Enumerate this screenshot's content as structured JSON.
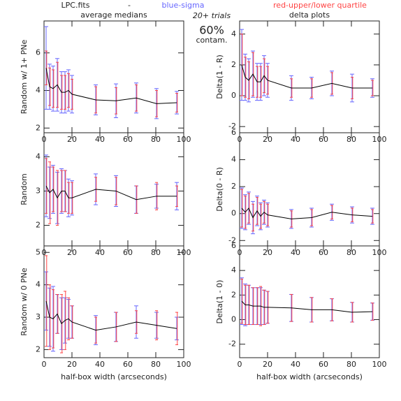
{
  "header": {
    "file": "LPC.fits",
    "dash": "-",
    "blue": "blue-sigma",
    "red": "red-upper/lower quartile",
    "trials": "20+ trials",
    "contam_value": "60%",
    "contam": "contam.",
    "blue_color": "#6666ff",
    "red_color": "#ff4444"
  },
  "chart_data": [
    {
      "type": "line",
      "title": "average medians",
      "ylabel": "Random w/ 1+ PNe",
      "xlim": [
        0,
        100
      ],
      "xticks": [
        0,
        20,
        40,
        60,
        80,
        100
      ],
      "ylim": [
        1.75,
        7.7
      ],
      "yticks": [
        2,
        4,
        6
      ],
      "x": [
        1.5,
        4,
        6.5,
        9.5,
        12.5,
        15,
        17.5,
        20,
        37,
        51.5,
        66,
        80.5,
        95
      ],
      "values": [
        5.2,
        4.2,
        4.1,
        4.3,
        3.9,
        3.9,
        4.0,
        3.8,
        3.5,
        3.45,
        3.6,
        3.3,
        3.35
      ],
      "sigma": [
        2.2,
        1.2,
        1.2,
        1.4,
        1.1,
        1.1,
        1.1,
        1.0,
        0.8,
        0.9,
        0.8,
        0.8,
        0.6
      ],
      "quartile": [
        0.9,
        1.0,
        1.0,
        1.2,
        0.9,
        0.9,
        0.9,
        0.8,
        0.7,
        0.7,
        0.7,
        0.7,
        0.5
      ],
      "line_color": "#000000",
      "sigma_color": "#6666ff",
      "quartile_color": "#ff4444"
    },
    {
      "type": "line",
      "title": "delta plots",
      "ylabel": "Delta(1 - R)",
      "xlim": [
        0,
        100
      ],
      "xticks": [
        0,
        20,
        40,
        60,
        80,
        100
      ],
      "ylim": [
        -2.4,
        4.85
      ],
      "yticks": [
        -2,
        0,
        2,
        4
      ],
      "x": [
        1.5,
        4,
        6.5,
        9.5,
        12.5,
        15,
        17.5,
        20,
        37,
        51.5,
        66,
        80.5,
        95
      ],
      "values": [
        2.0,
        1.2,
        1.0,
        1.4,
        0.9,
        0.9,
        1.3,
        1.0,
        0.5,
        0.5,
        0.8,
        0.5,
        0.5
      ],
      "sigma": [
        2.3,
        1.5,
        1.4,
        1.5,
        1.2,
        1.2,
        1.3,
        1.1,
        0.8,
        0.7,
        0.8,
        0.9,
        0.6
      ],
      "quartile": [
        2.0,
        1.3,
        1.2,
        1.4,
        1.0,
        1.0,
        1.1,
        0.9,
        0.6,
        0.6,
        0.7,
        0.7,
        0.5
      ],
      "line_color": "#000000",
      "sigma_color": "#6666ff",
      "quartile_color": "#ff4444"
    },
    {
      "type": "line",
      "ylabel": "Random",
      "xlim": [
        0,
        100
      ],
      "xticks": [
        0,
        20,
        40,
        60,
        80,
        100
      ],
      "ylim": [
        1.4,
        4.7
      ],
      "yticks": [
        2,
        3,
        4
      ],
      "x": [
        1.5,
        4,
        6.5,
        9.5,
        12.5,
        15,
        17.5,
        20,
        37,
        51.5,
        66,
        80.5,
        95
      ],
      "values": [
        3.15,
        2.95,
        3.05,
        2.8,
        3.0,
        3.0,
        2.8,
        2.8,
        3.05,
        3.0,
        2.75,
        2.85,
        2.85
      ],
      "sigma": [
        0.9,
        0.75,
        0.7,
        0.75,
        0.65,
        0.6,
        0.55,
        0.5,
        0.45,
        0.45,
        0.4,
        0.35,
        0.4
      ],
      "quartile": [
        0.8,
        0.9,
        0.65,
        0.8,
        0.6,
        0.6,
        0.45,
        0.45,
        0.35,
        0.4,
        0.4,
        0.4,
        0.3
      ],
      "line_color": "#000000",
      "sigma_color": "#6666ff",
      "quartile_color": "#ff4444"
    },
    {
      "type": "line",
      "ylabel": "Delta(0 - R)",
      "xlim": [
        0,
        100
      ],
      "xticks": [
        0,
        20,
        40,
        60,
        80,
        100
      ],
      "ylim": [
        -2.4,
        6.0
      ],
      "yticks": [
        -2,
        0,
        2,
        4,
        6
      ],
      "x": [
        1.5,
        4,
        6.5,
        9.5,
        12.5,
        15,
        17.5,
        20,
        37,
        51.5,
        66,
        80.5,
        95
      ],
      "values": [
        0.4,
        0.1,
        0.4,
        -0.3,
        0.2,
        -0.2,
        0.1,
        -0.1,
        -0.4,
        -0.3,
        0.1,
        -0.1,
        -0.2
      ],
      "sigma": [
        1.5,
        1.3,
        1.2,
        1.2,
        1.1,
        1.0,
        0.9,
        0.9,
        0.7,
        0.7,
        0.6,
        0.6,
        0.6
      ],
      "quartile": [
        1.4,
        1.2,
        1.1,
        1.0,
        1.0,
        0.9,
        0.8,
        0.8,
        0.6,
        0.6,
        0.5,
        0.5,
        0.5
      ],
      "line_color": "#000000",
      "sigma_color": "#6666ff",
      "quartile_color": "#ff4444"
    },
    {
      "type": "line",
      "ylabel": "Random w/ 0 PNe",
      "xlabel": "half-box width (arcseconds)",
      "xlim": [
        0,
        100
      ],
      "xticks": [
        0,
        20,
        40,
        60,
        80,
        100
      ],
      "ylim": [
        1.75,
        5.2
      ],
      "yticks": [
        2,
        3,
        4,
        5
      ],
      "x": [
        1.5,
        4,
        6.5,
        9.5,
        12.5,
        15,
        17.5,
        20,
        37,
        51.5,
        66,
        80.5,
        95
      ],
      "values": [
        3.5,
        3.0,
        2.95,
        3.1,
        2.8,
        2.9,
        2.95,
        2.85,
        2.6,
        2.7,
        2.85,
        2.75,
        2.65
      ],
      "sigma": [
        0.9,
        0.9,
        1.0,
        0.6,
        0.8,
        0.7,
        0.6,
        0.5,
        0.45,
        0.45,
        0.5,
        0.4,
        0.35
      ],
      "quartile": [
        1.4,
        1.0,
        0.9,
        0.6,
        0.9,
        0.9,
        0.65,
        0.5,
        0.4,
        0.45,
        0.35,
        0.45,
        0.5
      ],
      "line_color": "#000000",
      "sigma_color": "#6666ff",
      "quartile_color": "#ff4444"
    },
    {
      "type": "line",
      "ylabel": "Delta(1 - 0)",
      "xlabel": "half-box width (arcseconds)",
      "xlim": [
        0,
        100
      ],
      "xticks": [
        0,
        20,
        40,
        60,
        80,
        100
      ],
      "ylim": [
        -3.1,
        6.0
      ],
      "yticks": [
        -2,
        0,
        2,
        4,
        6
      ],
      "x": [
        1.5,
        4,
        6.5,
        9.5,
        12.5,
        15,
        17.5,
        20,
        37,
        51.5,
        66,
        80.5,
        95
      ],
      "values": [
        1.5,
        1.2,
        1.2,
        1.1,
        1.1,
        1.1,
        1.0,
        1.0,
        0.95,
        0.8,
        0.8,
        0.6,
        0.65
      ],
      "sigma": [
        1.9,
        1.7,
        1.6,
        1.5,
        1.5,
        1.5,
        1.4,
        1.3,
        1.1,
        1.0,
        0.9,
        0.8,
        0.7
      ],
      "quartile": [
        1.8,
        1.6,
        1.6,
        1.5,
        1.5,
        1.6,
        1.4,
        1.3,
        1.1,
        1.0,
        0.9,
        0.8,
        0.7
      ],
      "line_color": "#000000",
      "sigma_color": "#6666ff",
      "quartile_color": "#ff4444"
    }
  ]
}
